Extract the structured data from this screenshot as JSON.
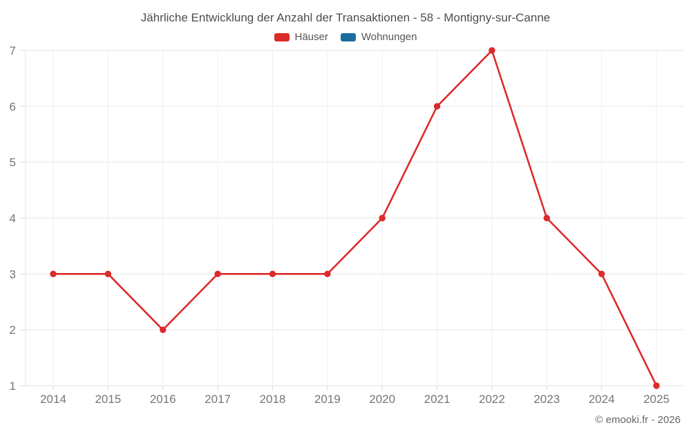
{
  "title": "Jährliche Entwicklung der Anzahl der Transaktionen - 58 - Montigny-sur-Canne",
  "legend": [
    {
      "label": "Häuser",
      "color": "#dd2a2a"
    },
    {
      "label": "Wohnungen",
      "color": "#1b6d9e"
    }
  ],
  "footer": "© emooki.fr - 2026",
  "chart_data": {
    "type": "line",
    "title": "Jährliche Entwicklung der Anzahl der Transaktionen - 58 - Montigny-sur-Canne",
    "x": [
      "2014",
      "2015",
      "2016",
      "2017",
      "2018",
      "2019",
      "2020",
      "2021",
      "2022",
      "2023",
      "2024",
      "2025"
    ],
    "series": [
      {
        "name": "Häuser",
        "color": "#dd2a2a",
        "values": [
          3,
          3,
          2,
          3,
          3,
          3,
          4,
          6,
          7,
          4,
          3,
          1
        ]
      },
      {
        "name": "Wohnungen",
        "color": "#1b6d9e",
        "values": []
      }
    ],
    "xlabel": "",
    "ylabel": "",
    "ylim": [
      1,
      7
    ],
    "yticks": [
      1,
      2,
      3,
      4,
      5,
      6,
      7
    ],
    "grid": true,
    "legend_position": "top",
    "marker": "circle"
  }
}
